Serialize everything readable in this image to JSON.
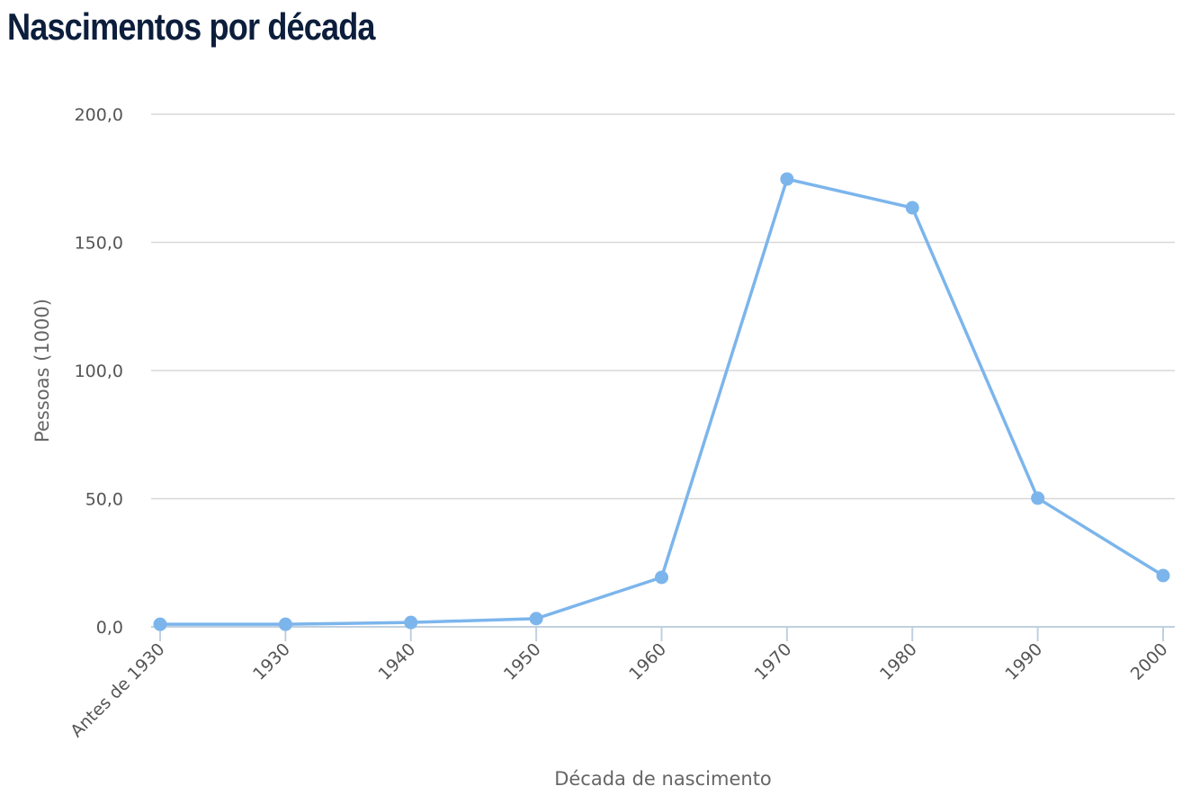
{
  "header": {
    "title": "Nascimentos por década"
  },
  "chart_data": {
    "type": "line",
    "title": "Nascimentos por década",
    "xlabel": "Década de nascimento",
    "ylabel": "Pessoas (1000)",
    "categories": [
      "Antes de 1930",
      "1930",
      "1940",
      "1950",
      "1960",
      "1970",
      "1980",
      "1990",
      "2000"
    ],
    "series": [
      {
        "name": "Pessoas (1000)",
        "color": "#7cb5ec",
        "values": [
          1.0,
          1.0,
          1.7,
          3.2,
          19.3,
          174.7,
          163.5,
          50.2,
          20.0
        ]
      }
    ],
    "ylim": [
      0,
      200
    ],
    "yticks": [
      0,
      50,
      100,
      150,
      200
    ],
    "ytick_labels": [
      "0,0",
      "50,0",
      "100,0",
      "150,0",
      "200,0"
    ],
    "grid": true,
    "legend": "none"
  },
  "colors": {
    "title": "#0c1e3c",
    "line": "#7cb5ec",
    "grid": "#d8d8d8",
    "axis": "#c0d0e0",
    "tick_text": "#555555"
  }
}
